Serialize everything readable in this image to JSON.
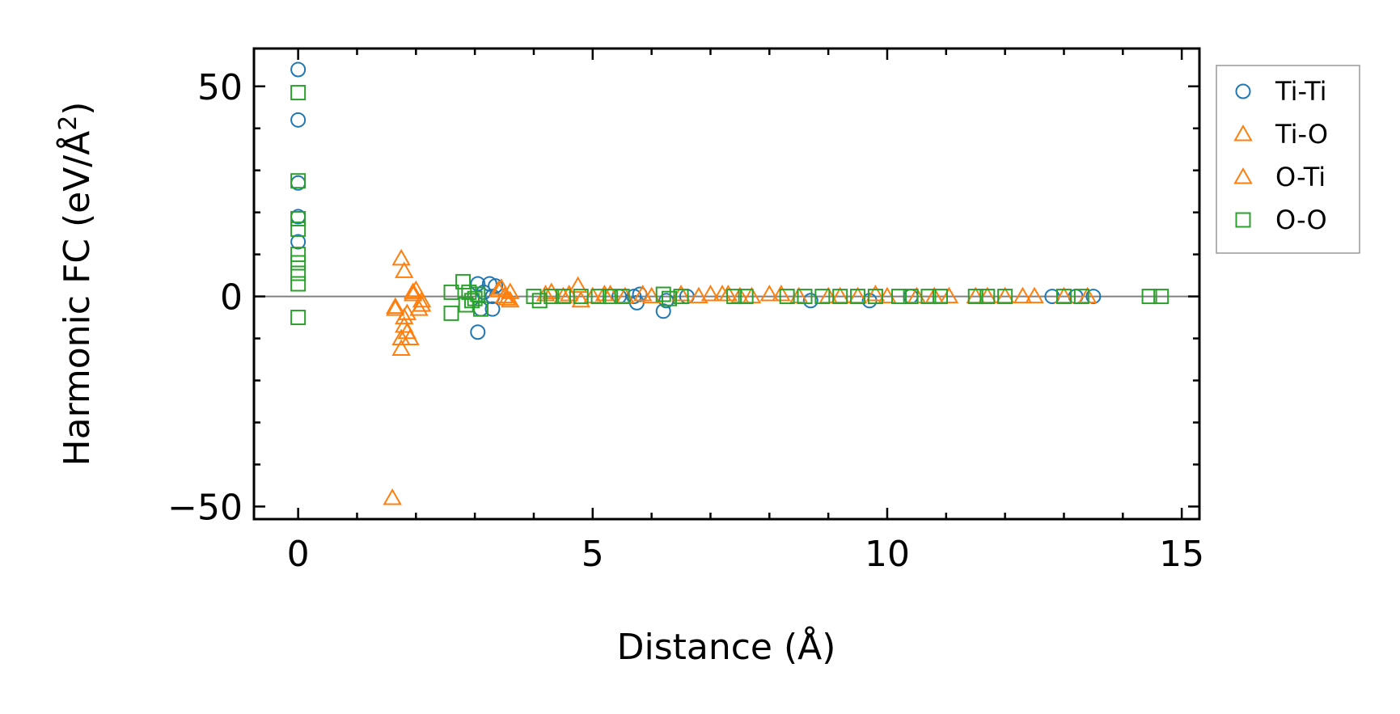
{
  "chart_data": {
    "type": "scatter",
    "title": "",
    "xlabel": "Distance (Å)",
    "ylabel_main": "Harmonic FC (eV/Å",
    "ylabel_sup": "2",
    "ylabel_close": ")",
    "xlim": [
      -0.75,
      15.3
    ],
    "ylim": [
      -53,
      59
    ],
    "xticks": [
      0,
      5,
      10,
      15
    ],
    "xtick_labels": [
      "0",
      "5",
      "10",
      "15"
    ],
    "yticks": [
      50,
      0,
      -50
    ],
    "ytick_labels": [
      "50",
      "0",
      "−50"
    ],
    "x_minor_step": 1,
    "y_minor_step": 10,
    "zero_line": true,
    "grid": false,
    "legend_position": "outside-right-top",
    "series": [
      {
        "name": "Ti-Ti",
        "marker": "circle",
        "color": "#1f77b4",
        "points": [
          [
            0,
            54
          ],
          [
            0,
            42
          ],
          [
            0,
            27
          ],
          [
            0,
            19
          ],
          [
            0,
            13
          ],
          [
            3.05,
            -8.5
          ],
          [
            3.05,
            3
          ],
          [
            3.1,
            -3
          ],
          [
            3.15,
            1
          ],
          [
            3.25,
            3
          ],
          [
            3.3,
            -3
          ],
          [
            3.35,
            2.5
          ],
          [
            3.3,
            0
          ],
          [
            5.45,
            0
          ],
          [
            5.7,
            0
          ],
          [
            5.75,
            -1.5
          ],
          [
            5.8,
            0.5
          ],
          [
            6.2,
            -3.5
          ],
          [
            6.25,
            -1
          ],
          [
            6.6,
            0
          ],
          [
            8.7,
            -1
          ],
          [
            9.7,
            -1
          ],
          [
            10.4,
            0
          ],
          [
            12.8,
            0
          ],
          [
            13.2,
            0
          ],
          [
            13.5,
            0
          ]
        ]
      },
      {
        "name": "Ti-O",
        "marker": "triangle",
        "color": "#ff7f0e",
        "points": [
          [
            1.6,
            -48
          ],
          [
            1.65,
            -3
          ],
          [
            1.75,
            9
          ],
          [
            1.75,
            -10
          ],
          [
            1.75,
            -12.5
          ],
          [
            1.8,
            6
          ],
          [
            1.8,
            -7
          ],
          [
            1.85,
            -4
          ],
          [
            1.85,
            -8.5
          ],
          [
            1.95,
            1
          ],
          [
            2.05,
            -3
          ],
          [
            2.1,
            -1
          ],
          [
            3.4,
            1.5
          ],
          [
            3.5,
            0
          ],
          [
            3.6,
            -1
          ],
          [
            3.6,
            1
          ],
          [
            4.2,
            0.5
          ],
          [
            4.5,
            0
          ],
          [
            4.75,
            2.5
          ],
          [
            4.8,
            -1
          ],
          [
            5.0,
            0
          ],
          [
            5.3,
            0.5
          ],
          [
            5.55,
            0
          ],
          [
            6.0,
            0
          ],
          [
            6.5,
            0.5
          ],
          [
            7.0,
            0.5
          ],
          [
            7.3,
            0.5
          ],
          [
            7.5,
            0
          ],
          [
            8.0,
            0.5
          ],
          [
            8.5,
            0
          ],
          [
            9.0,
            0
          ],
          [
            9.5,
            0
          ],
          [
            10.0,
            0
          ],
          [
            10.5,
            0
          ],
          [
            11.05,
            0
          ],
          [
            11.5,
            0
          ],
          [
            12.0,
            0
          ],
          [
            12.5,
            0
          ],
          [
            13.0,
            0
          ]
        ]
      },
      {
        "name": "O-Ti",
        "marker": "triangle",
        "color": "#ff7f0e",
        "points": [
          [
            1.65,
            -2.5
          ],
          [
            1.8,
            -5
          ],
          [
            1.9,
            -10
          ],
          [
            1.95,
            0.5
          ],
          [
            2.0,
            1.5
          ],
          [
            2.1,
            -2
          ],
          [
            3.45,
            2
          ],
          [
            3.55,
            -0.5
          ],
          [
            4.3,
            1
          ],
          [
            4.6,
            0.5
          ],
          [
            5.2,
            0.5
          ],
          [
            5.85,
            0.5
          ],
          [
            6.8,
            0
          ],
          [
            7.2,
            0.5
          ],
          [
            7.7,
            0
          ],
          [
            8.2,
            0.5
          ],
          [
            9.2,
            0
          ],
          [
            9.8,
            0.5
          ],
          [
            10.8,
            0
          ],
          [
            11.7,
            0
          ],
          [
            12.3,
            0
          ],
          [
            13.4,
            0
          ]
        ]
      },
      {
        "name": "O-O",
        "marker": "square",
        "color": "#2ca02c",
        "points": [
          [
            0,
            48.5
          ],
          [
            0,
            27.5
          ],
          [
            0,
            18.5
          ],
          [
            0,
            16
          ],
          [
            0,
            10
          ],
          [
            0,
            8
          ],
          [
            0,
            5.5
          ],
          [
            0,
            3
          ],
          [
            0,
            -5
          ],
          [
            2.6,
            -4
          ],
          [
            2.6,
            1
          ],
          [
            2.8,
            3.5
          ],
          [
            2.85,
            -2
          ],
          [
            2.9,
            1
          ],
          [
            2.95,
            -1
          ],
          [
            3.0,
            -0.5
          ],
          [
            3.05,
            0.5
          ],
          [
            3.1,
            -3
          ],
          [
            4.0,
            0
          ],
          [
            4.1,
            -1
          ],
          [
            4.3,
            0
          ],
          [
            4.5,
            0
          ],
          [
            4.8,
            0
          ],
          [
            5.1,
            0
          ],
          [
            5.3,
            0
          ],
          [
            5.5,
            0
          ],
          [
            6.2,
            0.5
          ],
          [
            6.3,
            -0.5
          ],
          [
            6.5,
            0
          ],
          [
            7.4,
            0
          ],
          [
            7.6,
            0
          ],
          [
            8.3,
            0
          ],
          [
            8.6,
            0
          ],
          [
            8.9,
            0
          ],
          [
            9.2,
            0
          ],
          [
            9.5,
            0
          ],
          [
            9.8,
            0
          ],
          [
            10.2,
            0
          ],
          [
            10.4,
            0
          ],
          [
            10.7,
            0
          ],
          [
            10.9,
            0
          ],
          [
            11.5,
            0
          ],
          [
            11.7,
            0
          ],
          [
            12.0,
            0
          ],
          [
            13.0,
            0
          ],
          [
            13.3,
            0
          ],
          [
            14.45,
            0
          ],
          [
            14.65,
            0
          ]
        ]
      }
    ]
  }
}
